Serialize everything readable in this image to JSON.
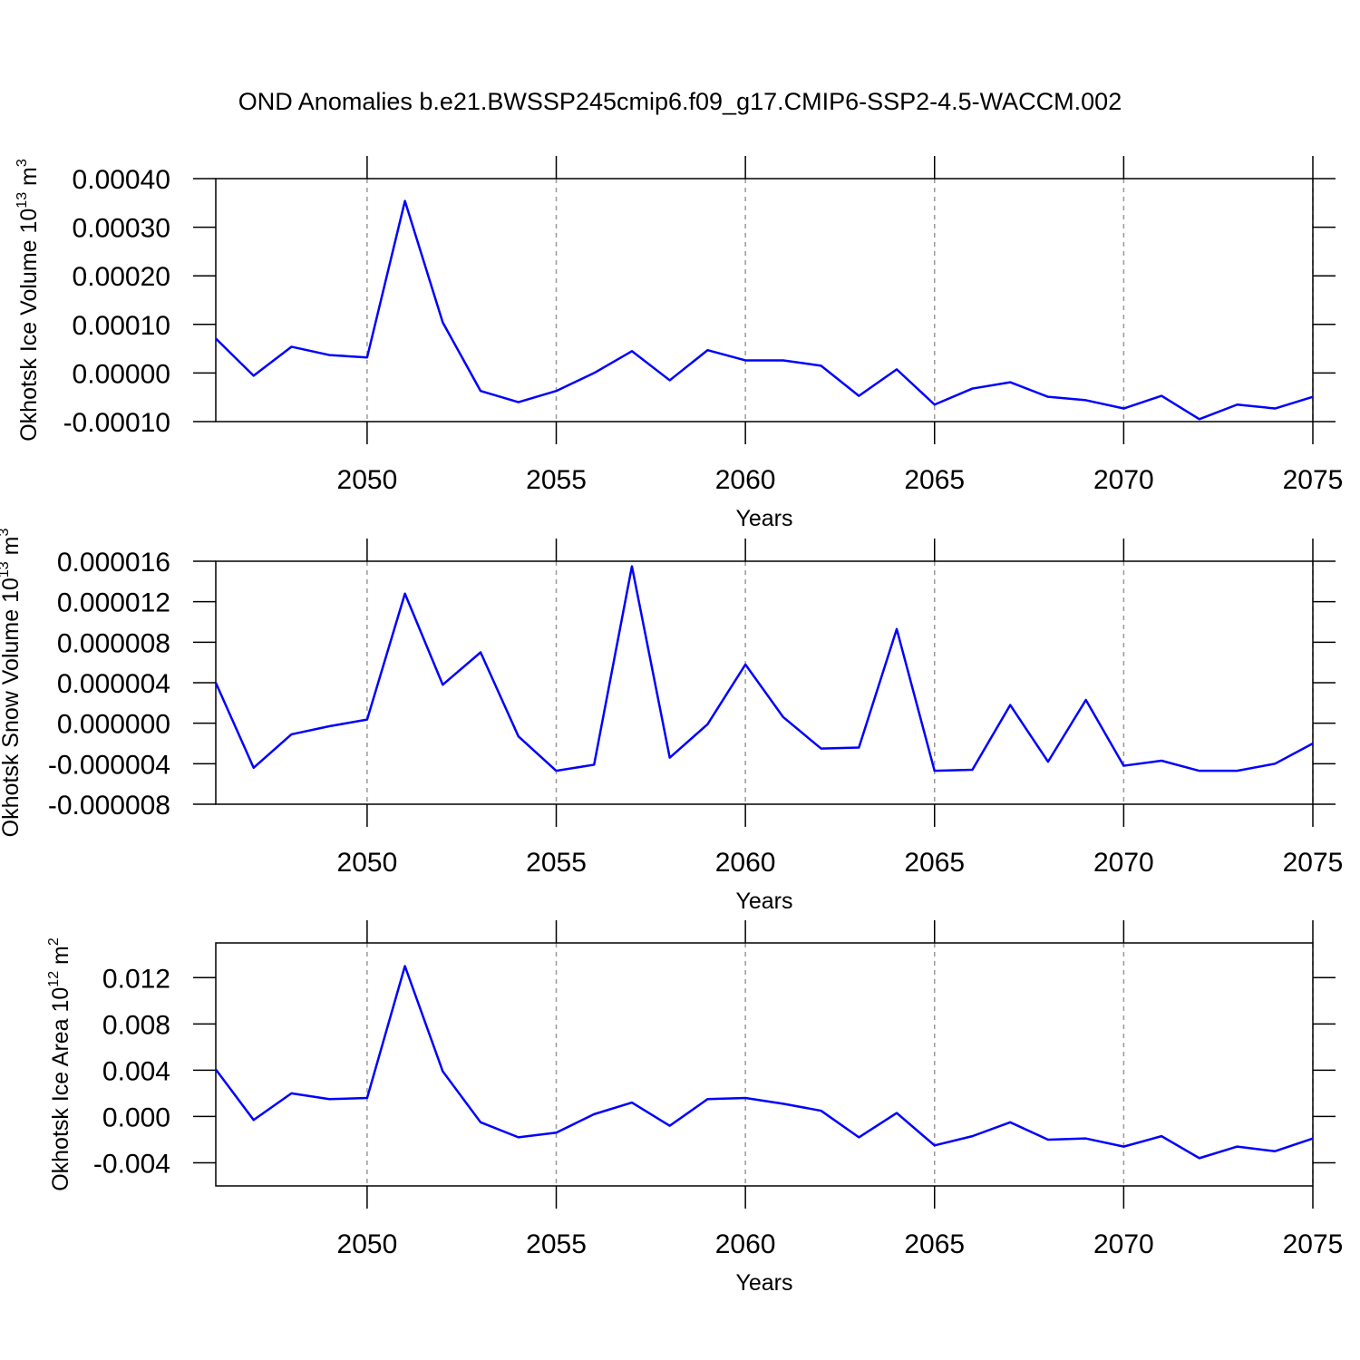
{
  "chart_data": [
    {
      "type": "line",
      "title": "OND Anomalies b.e21.BWSSP245cmip6.f09_g17.CMIP6-SSP2-4.5-WACCM.002",
      "ylabel": [
        "Okhotsk Ice Volume 10",
        "13",
        " m",
        "3"
      ],
      "xlabel": "Years",
      "x": [
        2046,
        2047,
        2048,
        2049,
        2050,
        2051,
        2052,
        2053,
        2054,
        2055,
        2056,
        2057,
        2058,
        2059,
        2060,
        2061,
        2062,
        2063,
        2064,
        2065,
        2066,
        2067,
        2068,
        2069,
        2070,
        2071,
        2072,
        2073,
        2074,
        2075
      ],
      "series": [
        {
          "color": "#0000ff",
          "values": [
            7.1e-05,
            -5.6e-06,
            5.4e-05,
            3.7e-05,
            3.2e-05,
            0.000354,
            0.000104,
            -3.7e-05,
            -6e-05,
            -3.7e-05,
            0.0,
            4.5e-05,
            -1.5e-05,
            4.7e-05,
            2.6e-05,
            2.6e-05,
            1.5e-05,
            -4.7e-05,
            7.5e-06,
            -6.5e-05,
            -3.2e-05,
            -1.9e-05,
            -4.9e-05,
            -5.6e-05,
            -7.3e-05,
            -4.7e-05,
            -9.5e-05,
            -6.5e-05,
            -7.3e-05,
            -4.9e-05
          ]
        }
      ],
      "xlim": [
        2046,
        2075
      ],
      "xticks": [
        2050,
        2055,
        2060,
        2065,
        2070,
        2075
      ],
      "ylim": [
        -0.0001,
        0.0004
      ],
      "yticks": [
        {
          "value": -0.0001,
          "label": "-0.00010"
        },
        {
          "value": 0,
          "label": "0.00000"
        },
        {
          "value": 0.0001,
          "label": "0.00010"
        },
        {
          "value": 0.0002,
          "label": "0.00020"
        },
        {
          "value": 0.0003,
          "label": "0.00030"
        },
        {
          "value": 0.0004,
          "label": "0.00040"
        }
      ],
      "grid": "x"
    },
    {
      "type": "line",
      "ylabel": [
        "Okhotsk Snow Volume 10",
        "13",
        " m",
        "3"
      ],
      "xlabel": "Years",
      "x": [
        2046,
        2047,
        2048,
        2049,
        2050,
        2051,
        2052,
        2053,
        2054,
        2055,
        2056,
        2057,
        2058,
        2059,
        2060,
        2061,
        2062,
        2063,
        2064,
        2065,
        2066,
        2067,
        2068,
        2069,
        2070,
        2071,
        2072,
        2073,
        2074,
        2075
      ],
      "series": [
        {
          "color": "#0000ff",
          "values": [
            4e-06,
            -4.4e-06,
            -1.1e-06,
            -3e-07,
            3.6e-07,
            1.28e-05,
            3.8e-06,
            7e-06,
            -1.3e-06,
            -4.7e-06,
            -4.1e-06,
            1.55e-05,
            -3.4e-06,
            -1e-07,
            5.8e-06,
            6e-07,
            -2.5e-06,
            -2.4e-06,
            9.3e-06,
            -4.7e-06,
            -4.6e-06,
            1.8e-06,
            -3.8e-06,
            2.3e-06,
            -4.2e-06,
            -3.7e-06,
            -4.7e-06,
            -4.7e-06,
            -4e-06,
            -2e-06
          ]
        }
      ],
      "xlim": [
        2046,
        2075
      ],
      "xticks": [
        2050,
        2055,
        2060,
        2065,
        2070,
        2075
      ],
      "ylim": [
        -8e-06,
        1.6e-05
      ],
      "yticks": [
        {
          "value": -8e-06,
          "label": "-0.000008"
        },
        {
          "value": -4e-06,
          "label": "-0.000004"
        },
        {
          "value": 0,
          "label": "0.000000"
        },
        {
          "value": 4e-06,
          "label": "0.000004"
        },
        {
          "value": 8e-06,
          "label": "0.000008"
        },
        {
          "value": 1.2e-05,
          "label": "0.000012"
        },
        {
          "value": 1.6e-05,
          "label": "0.000016"
        }
      ],
      "grid": "x"
    },
    {
      "type": "line",
      "ylabel": [
        "Okhotsk Ice Area 10",
        "12",
        " m",
        "2"
      ],
      "xlabel": "Years",
      "x": [
        2046,
        2047,
        2048,
        2049,
        2050,
        2051,
        2052,
        2053,
        2054,
        2055,
        2056,
        2057,
        2058,
        2059,
        2060,
        2061,
        2062,
        2063,
        2064,
        2065,
        2066,
        2067,
        2068,
        2069,
        2070,
        2071,
        2072,
        2073,
        2074,
        2075
      ],
      "series": [
        {
          "color": "#0000ff",
          "values": [
            0.00407,
            -0.0003,
            0.002,
            0.0015,
            0.0016,
            0.013,
            0.0039,
            -0.0005,
            -0.0018,
            -0.0014,
            0.0002,
            0.0012,
            -0.0008,
            0.0015,
            0.0016,
            0.0011,
            0.0005,
            -0.0018,
            0.0003,
            -0.0025,
            -0.0017,
            -0.0005,
            -0.002,
            -0.0019,
            -0.0026,
            -0.0017,
            -0.0036,
            -0.0026,
            -0.003,
            -0.0019
          ]
        }
      ],
      "xlim": [
        2046,
        2075
      ],
      "xticks": [
        2050,
        2055,
        2060,
        2065,
        2070,
        2075
      ],
      "ylim": [
        -0.006,
        0.015
      ],
      "yticks": [
        {
          "value": -0.004,
          "label": "-0.004"
        },
        {
          "value": 0,
          "label": "0.000"
        },
        {
          "value": 0.004,
          "label": "0.004"
        },
        {
          "value": 0.008,
          "label": "0.008"
        },
        {
          "value": 0.012,
          "label": "0.012"
        }
      ],
      "grid": "x"
    }
  ]
}
